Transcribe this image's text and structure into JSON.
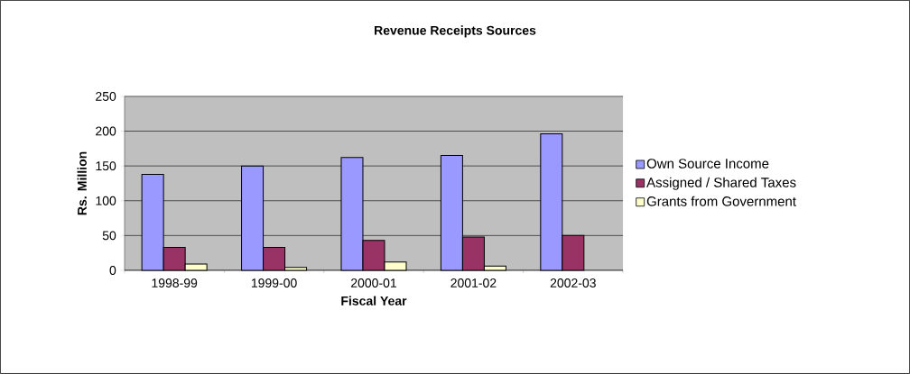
{
  "chart_data": {
    "type": "bar",
    "title": "Revenue Receipts Sources",
    "xlabel": "Fiscal Year",
    "ylabel": "Rs. Million",
    "categories": [
      "1998-99",
      "1999-00",
      "2000-01",
      "2001-02",
      "2002-03"
    ],
    "series": [
      {
        "name": "Own Source Income",
        "color": "#9999ff",
        "values": [
          138,
          150,
          162,
          165,
          196
        ]
      },
      {
        "name": "Assigned / Shared Taxes",
        "color": "#993366",
        "values": [
          33,
          33,
          43,
          48,
          50
        ]
      },
      {
        "name": "Grants from Government",
        "color": "#ffffcc",
        "values": [
          9,
          4,
          12,
          6,
          null
        ]
      }
    ],
    "ylim": [
      0,
      250
    ],
    "yticks": [
      0,
      50,
      100,
      150,
      200,
      250
    ],
    "grid": "y",
    "legend": "right"
  }
}
